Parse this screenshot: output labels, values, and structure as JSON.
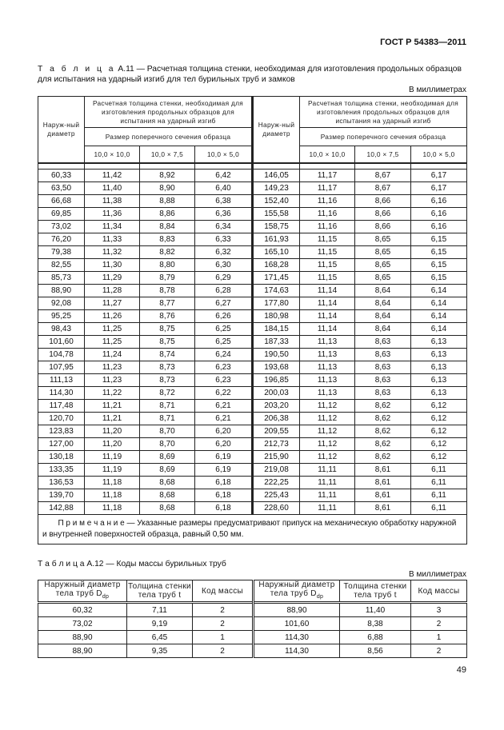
{
  "header": "ГОСТ Р 54383—2011",
  "table11": {
    "label": "Т а б л и ц а",
    "caption": "А.11 — Расчетная толщина стенки, необходимая для изготовления  продольных образцов для испытания на ударный изгиб для тел бурильных труб и замков",
    "units": "В миллиметрах",
    "col_diam": "Наруж-ный диаметр",
    "col_group": "Расчетная толщина стенки, необходимая для изготовления продольных образцов для испытания на ударный изгиб",
    "col_size": "Размер поперечного сечения образца",
    "sizes": [
      "10,0 × 10,0",
      "10,0 × 7,5",
      "10,0 × 5,0"
    ],
    "rows": [
      [
        "60,33",
        "11,42",
        "8,92",
        "6,42",
        "146,05",
        "11,17",
        "8,67",
        "6,17"
      ],
      [
        "63,50",
        "11,40",
        "8,90",
        "6,40",
        "149,23",
        "11,17",
        "8,67",
        "6,17"
      ],
      [
        "66,68",
        "11,38",
        "8,88",
        "6,38",
        "152,40",
        "11,16",
        "8,66",
        "6,16"
      ],
      [
        "69,85",
        "11,36",
        "8,86",
        "6,36",
        "155,58",
        "11,16",
        "8,66",
        "6,16"
      ],
      [
        "73,02",
        "11,34",
        "8,84",
        "6,34",
        "158,75",
        "11,16",
        "8,66",
        "6,16"
      ],
      [
        "76,20",
        "11,33",
        "8,83",
        "6,33",
        "161,93",
        "11,15",
        "8,65",
        "6,15"
      ],
      [
        "79,38",
        "11,32",
        "8,82",
        "6,32",
        "165,10",
        "11,15",
        "8,65",
        "6,15"
      ],
      [
        "82,55",
        "11,30",
        "8,80",
        "6,30",
        "168,28",
        "11,15",
        "8,65",
        "6,15"
      ],
      [
        "85,73",
        "11,29",
        "8,79",
        "6,29",
        "171,45",
        "11,15",
        "8,65",
        "6,15"
      ],
      [
        "88,90",
        "11,28",
        "8,78",
        "6,28",
        "174,63",
        "11,14",
        "8,64",
        "6,14"
      ],
      [
        "92,08",
        "11,27",
        "8,77",
        "6,27",
        "177,80",
        "11,14",
        "8,64",
        "6,14"
      ],
      [
        "95,25",
        "11,26",
        "8,76",
        "6,26",
        "180,98",
        "11,14",
        "8,64",
        "6,14"
      ],
      [
        "98,43",
        "11,25",
        "8,75",
        "6,25",
        "184,15",
        "11,14",
        "8,64",
        "6,14"
      ],
      [
        "101,60",
        "11,25",
        "8,75",
        "6,25",
        "187,33",
        "11,13",
        "8,63",
        "6,13"
      ],
      [
        "104,78",
        "11,24",
        "8,74",
        "6,24",
        "190,50",
        "11,13",
        "8,63",
        "6,13"
      ],
      [
        "107,95",
        "11,23",
        "8,73",
        "6,23",
        "193,68",
        "11,13",
        "8,63",
        "6,13"
      ],
      [
        "111,13",
        "11,23",
        "8,73",
        "6,23",
        "196,85",
        "11,13",
        "8,63",
        "6,13"
      ],
      [
        "114,30",
        "11,22",
        "8,72",
        "6,22",
        "200,03",
        "11,13",
        "8,63",
        "6,13"
      ],
      [
        "117,48",
        "11,21",
        "8,71",
        "6,21",
        "203,20",
        "11,12",
        "8,62",
        "6,12"
      ],
      [
        "120,70",
        "11,21",
        "8,71",
        "6,21",
        "206,38",
        "11,12",
        "8,62",
        "6,12"
      ],
      [
        "123,83",
        "11,20",
        "8,70",
        "6,20",
        "209,55",
        "11,12",
        "8,62",
        "6,12"
      ],
      [
        "127,00",
        "11,20",
        "8,70",
        "6,20",
        "212,73",
        "11,12",
        "8,62",
        "6,12"
      ],
      [
        "130,18",
        "11,19",
        "8,69",
        "6,19",
        "215,90",
        "11,12",
        "8,62",
        "6,12"
      ],
      [
        "133,35",
        "11,19",
        "8,69",
        "6,19",
        "219,08",
        "11,11",
        "8,61",
        "6,11"
      ],
      [
        "136,53",
        "11,18",
        "8,68",
        "6,18",
        "222,25",
        "11,11",
        "8,61",
        "6,11"
      ],
      [
        "139,70",
        "11,18",
        "8,68",
        "6,18",
        "225,43",
        "11,11",
        "8,61",
        "6,11"
      ],
      [
        "142,88",
        "11,18",
        "8,68",
        "6,18",
        "228,60",
        "11,11",
        "8,61",
        "6,11"
      ]
    ],
    "note_label": "П р и м е ч а н и е",
    "note": " — Указанные размеры предусматривают припуск на механическую обработку наружной и внутренней поверхностей образца, равный 0,50 мм."
  },
  "table12": {
    "label": "Т а б л и ц а",
    "caption": "А.12 — Коды массы бурильных труб",
    "units": "В миллиметрах",
    "headers": [
      "Наружный диаметр тела труб D",
      "Толщина стенки тела труб t",
      "Код массы"
    ],
    "sub": "dp",
    "rows": [
      [
        "60,32",
        "7,11",
        "2",
        "88,90",
        "11,40",
        "3"
      ],
      [
        "73,02",
        "9,19",
        "2",
        "101,60",
        "8,38",
        "2"
      ],
      [
        "88,90",
        "6,45",
        "1",
        "114,30",
        "6,88",
        "1"
      ],
      [
        "88,90",
        "9,35",
        "2",
        "114,30",
        "8,56",
        "2"
      ]
    ]
  },
  "page_number": "49"
}
